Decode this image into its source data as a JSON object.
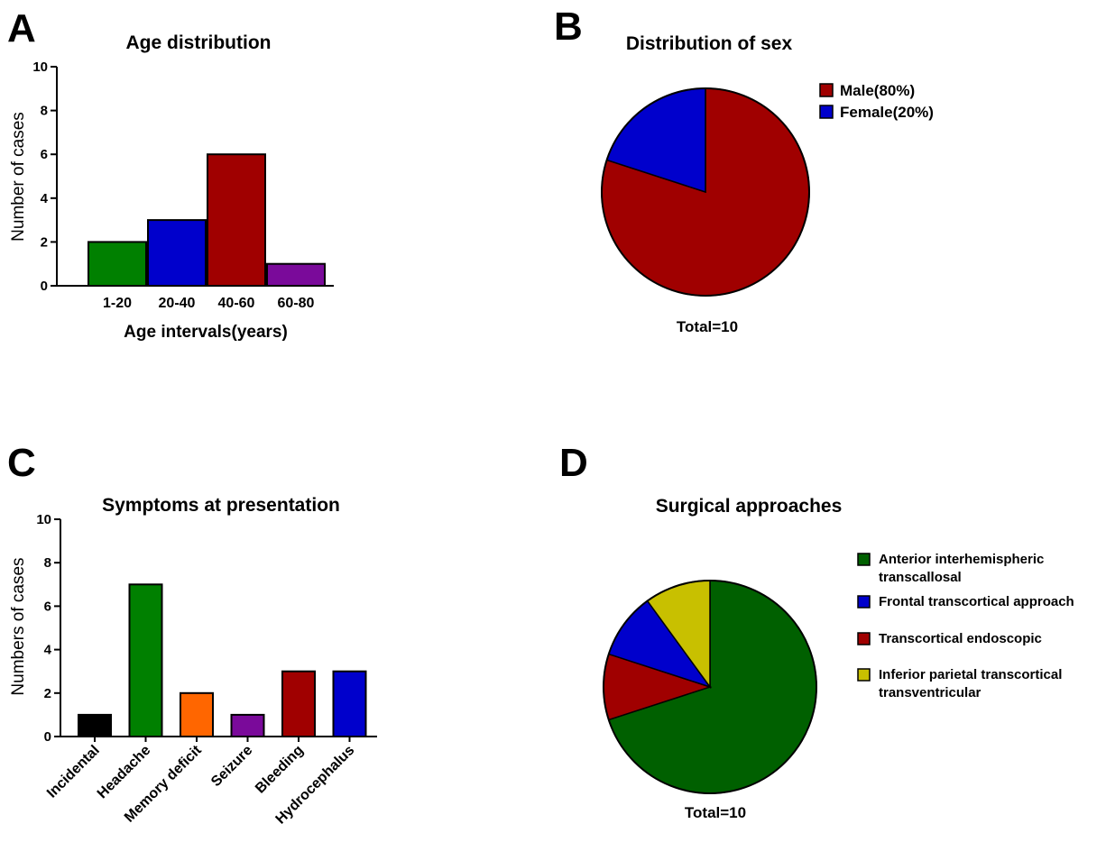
{
  "chart_data": [
    {
      "panel": "A",
      "type": "bar",
      "title": "Age distribution",
      "xlabel": "Age intervals(years)",
      "ylabel": "Number of cases",
      "ylim": [
        0,
        10
      ],
      "yticks": [
        0,
        2,
        4,
        6,
        8,
        10
      ],
      "categories": [
        "1-20",
        "20-40",
        "40-60",
        "60-80"
      ],
      "values": [
        2,
        3,
        6,
        1
      ],
      "colors": [
        "#008000",
        "#0000CC",
        "#A00000",
        "#7A0A9A"
      ],
      "grid": false
    },
    {
      "panel": "B",
      "type": "pie",
      "title": "Distribution of sex",
      "labels": [
        "Male(80%)",
        "Female(20%)"
      ],
      "values": [
        80,
        20
      ],
      "colors": [
        "#A00000",
        "#0000CC"
      ],
      "legend": "top-right",
      "footnote": "Total=10"
    },
    {
      "panel": "C",
      "type": "bar",
      "title": "Symptoms at presentation",
      "xlabel": "",
      "ylabel": "Numbers of cases",
      "ylim": [
        0,
        10
      ],
      "yticks": [
        0,
        2,
        4,
        6,
        8,
        10
      ],
      "categories": [
        "Incidental",
        "Headache",
        "Memory deficit",
        "Seizure",
        "Bleeding",
        "Hydrocephalus"
      ],
      "values": [
        1,
        7,
        2,
        1,
        3,
        3
      ],
      "colors": [
        "#000000",
        "#008000",
        "#FF6600",
        "#7A0A9A",
        "#A00000",
        "#0000CC"
      ],
      "grid": false
    },
    {
      "panel": "D",
      "type": "pie",
      "title": "Surgical approaches",
      "labels": [
        [
          "Anterior interhemispheric",
          "transcallosal"
        ],
        [
          "Frontal transcortical approach"
        ],
        [
          "Transcortical endoscopic"
        ],
        [
          "Inferior parietal transcortical",
          "transventricular"
        ]
      ],
      "values": [
        7,
        1,
        1,
        1
      ],
      "colors": [
        "#006000",
        "#0000CC",
        "#A00000",
        "#C8C000"
      ],
      "legend": "right",
      "footnote": "Total=10"
    }
  ]
}
